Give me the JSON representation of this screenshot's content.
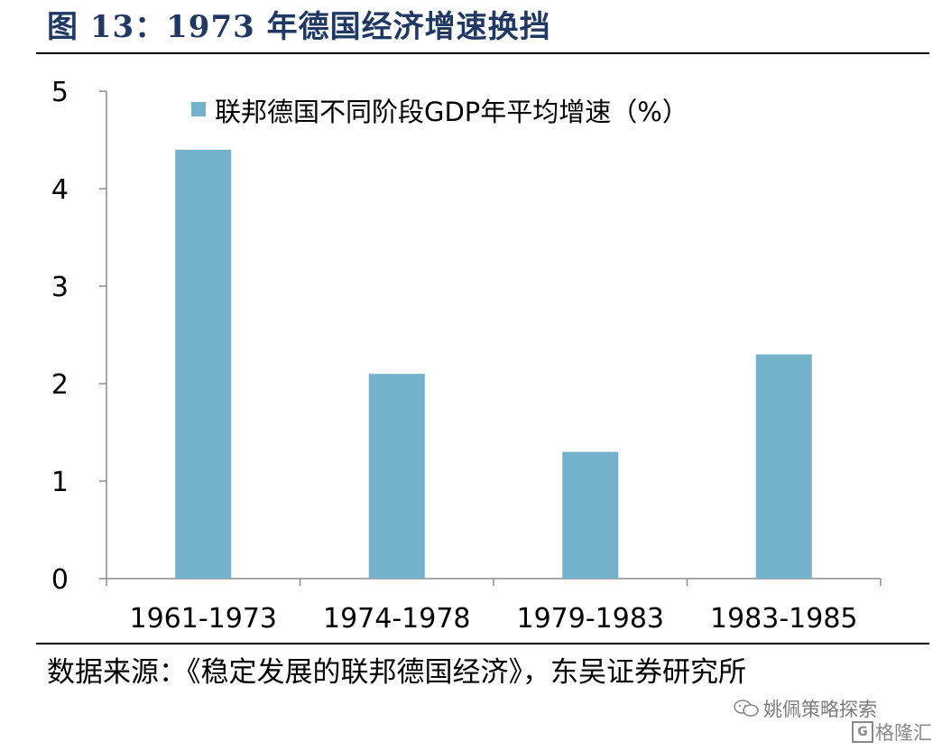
{
  "figure": {
    "title": "图 13：1973 年德国经济增速换挡",
    "source": "数据来源：《稳定发展的联邦德国经济》，东吴证券研究所"
  },
  "watermark": {
    "account": "姚佩策略探索",
    "brand": "格隆汇",
    "icon": "wechat-icon",
    "brand_icon": "gelonghui-logo-icon"
  },
  "chart_data": {
    "type": "bar",
    "categories": [
      "1961-1973",
      "1974-1978",
      "1979-1983",
      "1983-1985"
    ],
    "series": [
      {
        "name": "联邦德国不同阶段GDP年平均增速（%）",
        "values": [
          4.4,
          2.1,
          1.3,
          2.3
        ],
        "color": "#74b1ca"
      }
    ],
    "yticks": [
      "0",
      "1",
      "2",
      "3",
      "4",
      "5"
    ],
    "ylim": [
      0,
      5
    ],
    "grid": false,
    "legend": "top",
    "xlabel": "",
    "ylabel": ""
  }
}
